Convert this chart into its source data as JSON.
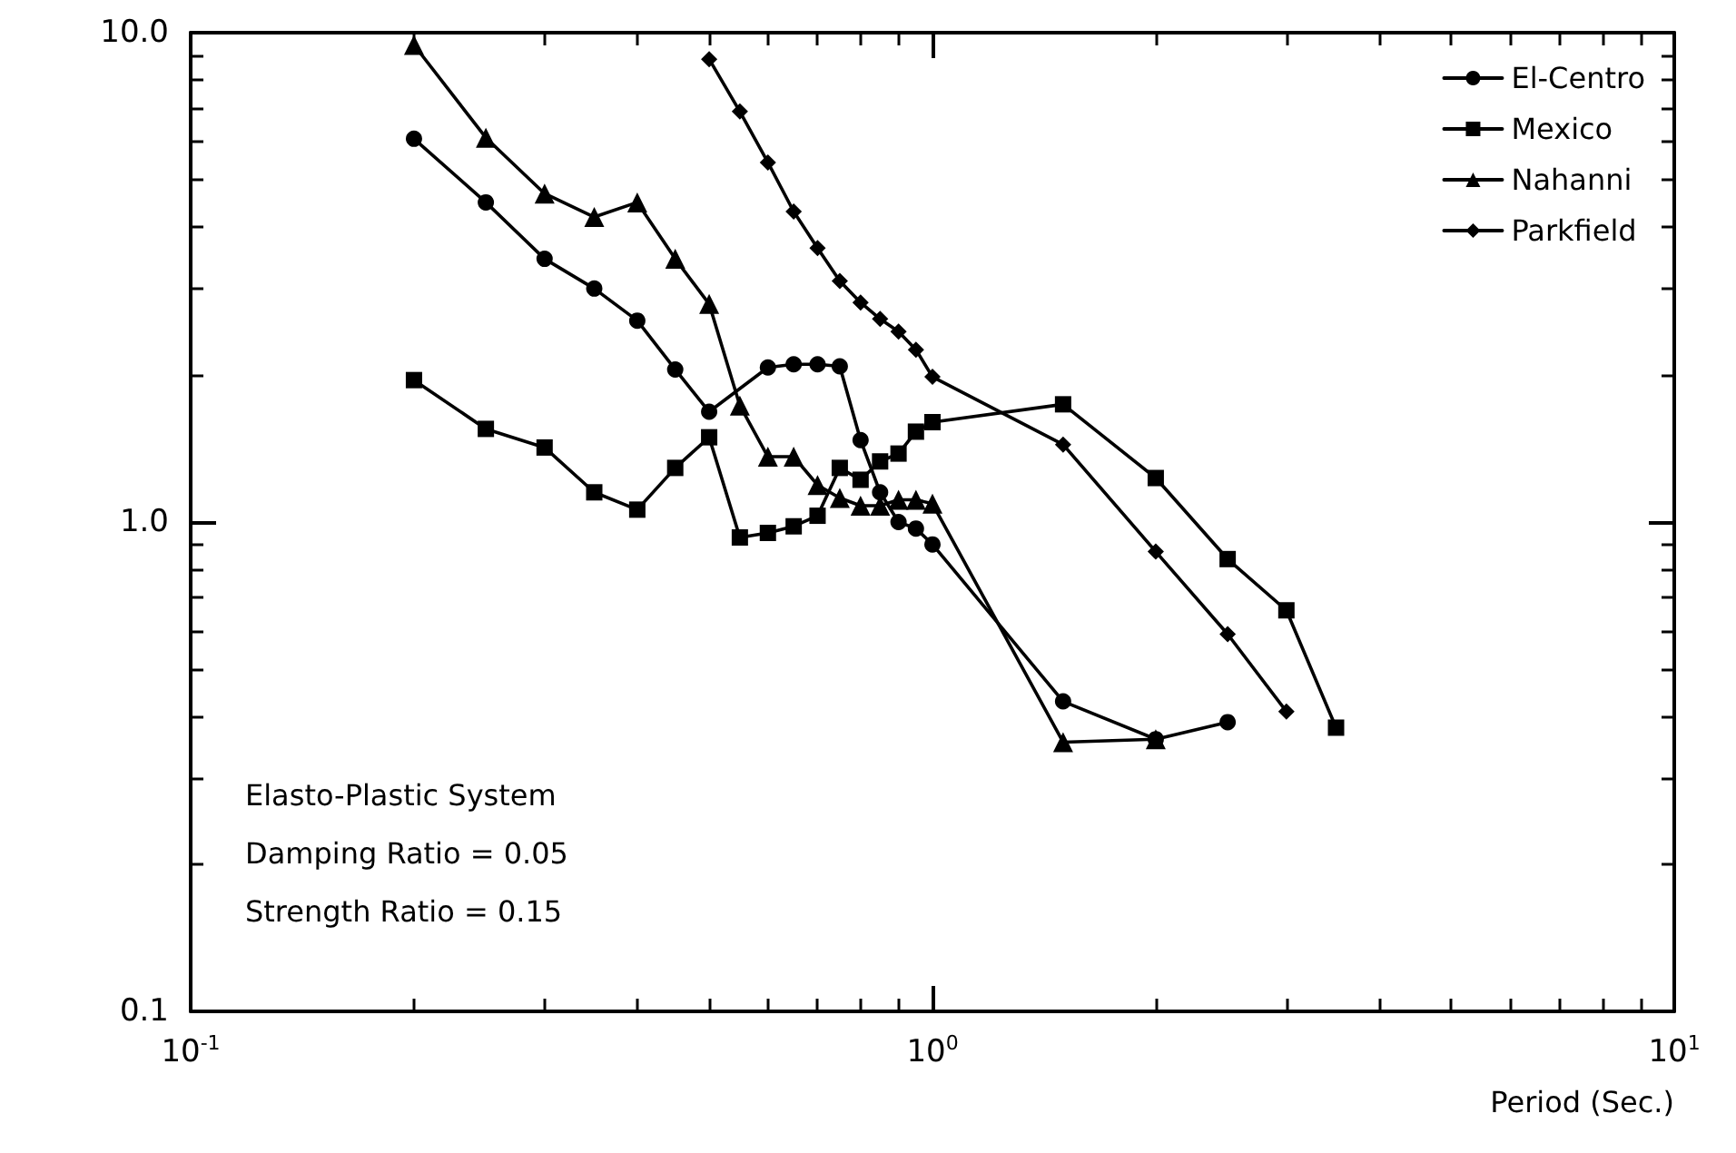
{
  "chart_data": {
    "type": "line",
    "xlabel": "Period (Sec.)",
    "log": "xy",
    "xlim": [
      0.1,
      10
    ],
    "ylim": [
      0.1,
      10
    ],
    "xticks": [
      {
        "value": 0.1,
        "label": "10$^{-1}$"
      },
      {
        "value": 1,
        "label": "10$^{0}$"
      },
      {
        "value": 10,
        "label": "10$^{1}$"
      }
    ],
    "yticks": [
      {
        "value": 0.1,
        "label": "0.1"
      },
      {
        "value": 1,
        "label": "1.0"
      },
      {
        "value": 10,
        "label": "10.0"
      }
    ],
    "grid": false,
    "legend": "top right",
    "line_style": "solid",
    "annotations": [
      "Elasto-Plastic System",
      "Damping Ratio = 0.05",
      "Strength Ratio = 0.15"
    ],
    "series": [
      {
        "name": "El-Centro",
        "color": "#000000",
        "marker": "circle",
        "x": [
          0.2,
          0.25,
          0.3,
          0.35,
          0.4,
          0.45,
          0.5,
          0.6,
          0.65,
          0.7,
          0.75,
          0.8,
          0.85,
          0.9,
          0.95,
          1.0,
          1.5,
          2.0,
          2.5
        ],
        "values": [
          6.07,
          4.5,
          3.45,
          3.0,
          2.58,
          2.05,
          1.68,
          2.07,
          2.1,
          2.1,
          2.08,
          1.47,
          1.15,
          1.0,
          0.97,
          0.9,
          0.43,
          0.36,
          0.39
        ]
      },
      {
        "name": "Mexico",
        "color": "#000000",
        "marker": "square",
        "x": [
          0.2,
          0.25,
          0.3,
          0.35,
          0.4,
          0.45,
          0.5,
          0.55,
          0.6,
          0.65,
          0.7,
          0.75,
          0.8,
          0.85,
          0.9,
          0.95,
          1.0,
          1.5,
          2.0,
          2.5,
          3.0,
          3.5
        ],
        "values": [
          1.95,
          1.55,
          1.42,
          1.15,
          1.06,
          1.29,
          1.49,
          0.93,
          0.95,
          0.98,
          1.03,
          1.29,
          1.22,
          1.33,
          1.38,
          1.53,
          1.6,
          1.74,
          1.23,
          0.84,
          0.66,
          0.38
        ]
      },
      {
        "name": "Nahanni",
        "color": "#000000",
        "marker": "triangle",
        "x": [
          0.2,
          0.25,
          0.3,
          0.35,
          0.4,
          0.45,
          0.5,
          0.55,
          0.6,
          0.65,
          0.7,
          0.75,
          0.8,
          0.85,
          0.9,
          0.95,
          1.0,
          1.5,
          2.0
        ],
        "values": [
          9.44,
          6.1,
          4.69,
          4.2,
          4.5,
          3.45,
          2.79,
          1.73,
          1.36,
          1.36,
          1.19,
          1.12,
          1.08,
          1.08,
          1.11,
          1.11,
          1.09,
          0.355,
          0.36
        ]
      },
      {
        "name": "Parkfield",
        "color": "#000000",
        "marker": "diamond",
        "x": [
          0.5,
          0.55,
          0.6,
          0.65,
          0.7,
          0.75,
          0.8,
          0.85,
          0.9,
          0.95,
          1.0,
          1.5,
          2.0,
          2.5,
          3.0
        ],
        "values": [
          8.83,
          6.9,
          5.43,
          4.31,
          3.63,
          3.11,
          2.81,
          2.6,
          2.45,
          2.25,
          1.98,
          1.44,
          0.87,
          0.59,
          0.41
        ]
      }
    ]
  }
}
